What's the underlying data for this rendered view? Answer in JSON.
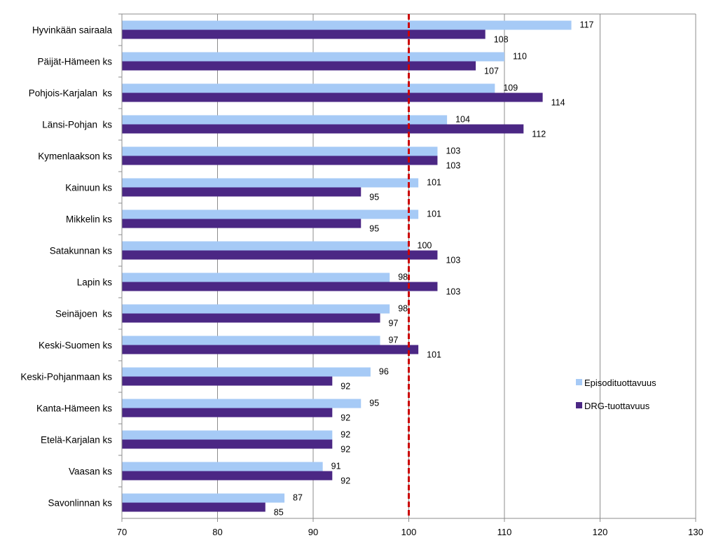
{
  "chart_data": {
    "type": "bar",
    "orientation": "horizontal",
    "categories": [
      "Hyvinkään sairaala",
      "Päijät-Hämeen ks",
      "Pohjois-Karjalan  ks",
      "Länsi-Pohjan  ks",
      "Kymenlaakson ks",
      "Kainuun ks",
      "Mikkelin ks",
      "Satakunnan ks",
      "Lapin ks",
      "Seinäjoen  ks",
      "Keski-Suomen ks",
      "Keski-Pohjanmaan ks",
      "Kanta-Hämeen ks",
      "Etelä-Karjalan ks",
      "Vaasan ks",
      "Savonlinnan ks"
    ],
    "series": [
      {
        "name": "Episodituottavuus",
        "color": "#a6caf6",
        "values": [
          117,
          110,
          109,
          104,
          103,
          101,
          101,
          100,
          98,
          98,
          97,
          96,
          95,
          92,
          91,
          87
        ]
      },
      {
        "name": "DRG-tuottavuus",
        "color": "#4b2784",
        "values": [
          108,
          107,
          114,
          112,
          103,
          95,
          95,
          103,
          103,
          97,
          101,
          92,
          92,
          92,
          92,
          85
        ]
      }
    ],
    "xlim": [
      70,
      130
    ],
    "xticks": [
      "70",
      "80",
      "90",
      "100",
      "110",
      "120",
      "130"
    ],
    "reference_line": {
      "value": 100,
      "color": "#cc0000"
    },
    "gridlines": "vertical",
    "legend_position": "right",
    "title": "",
    "xlabel": "",
    "ylabel": ""
  }
}
